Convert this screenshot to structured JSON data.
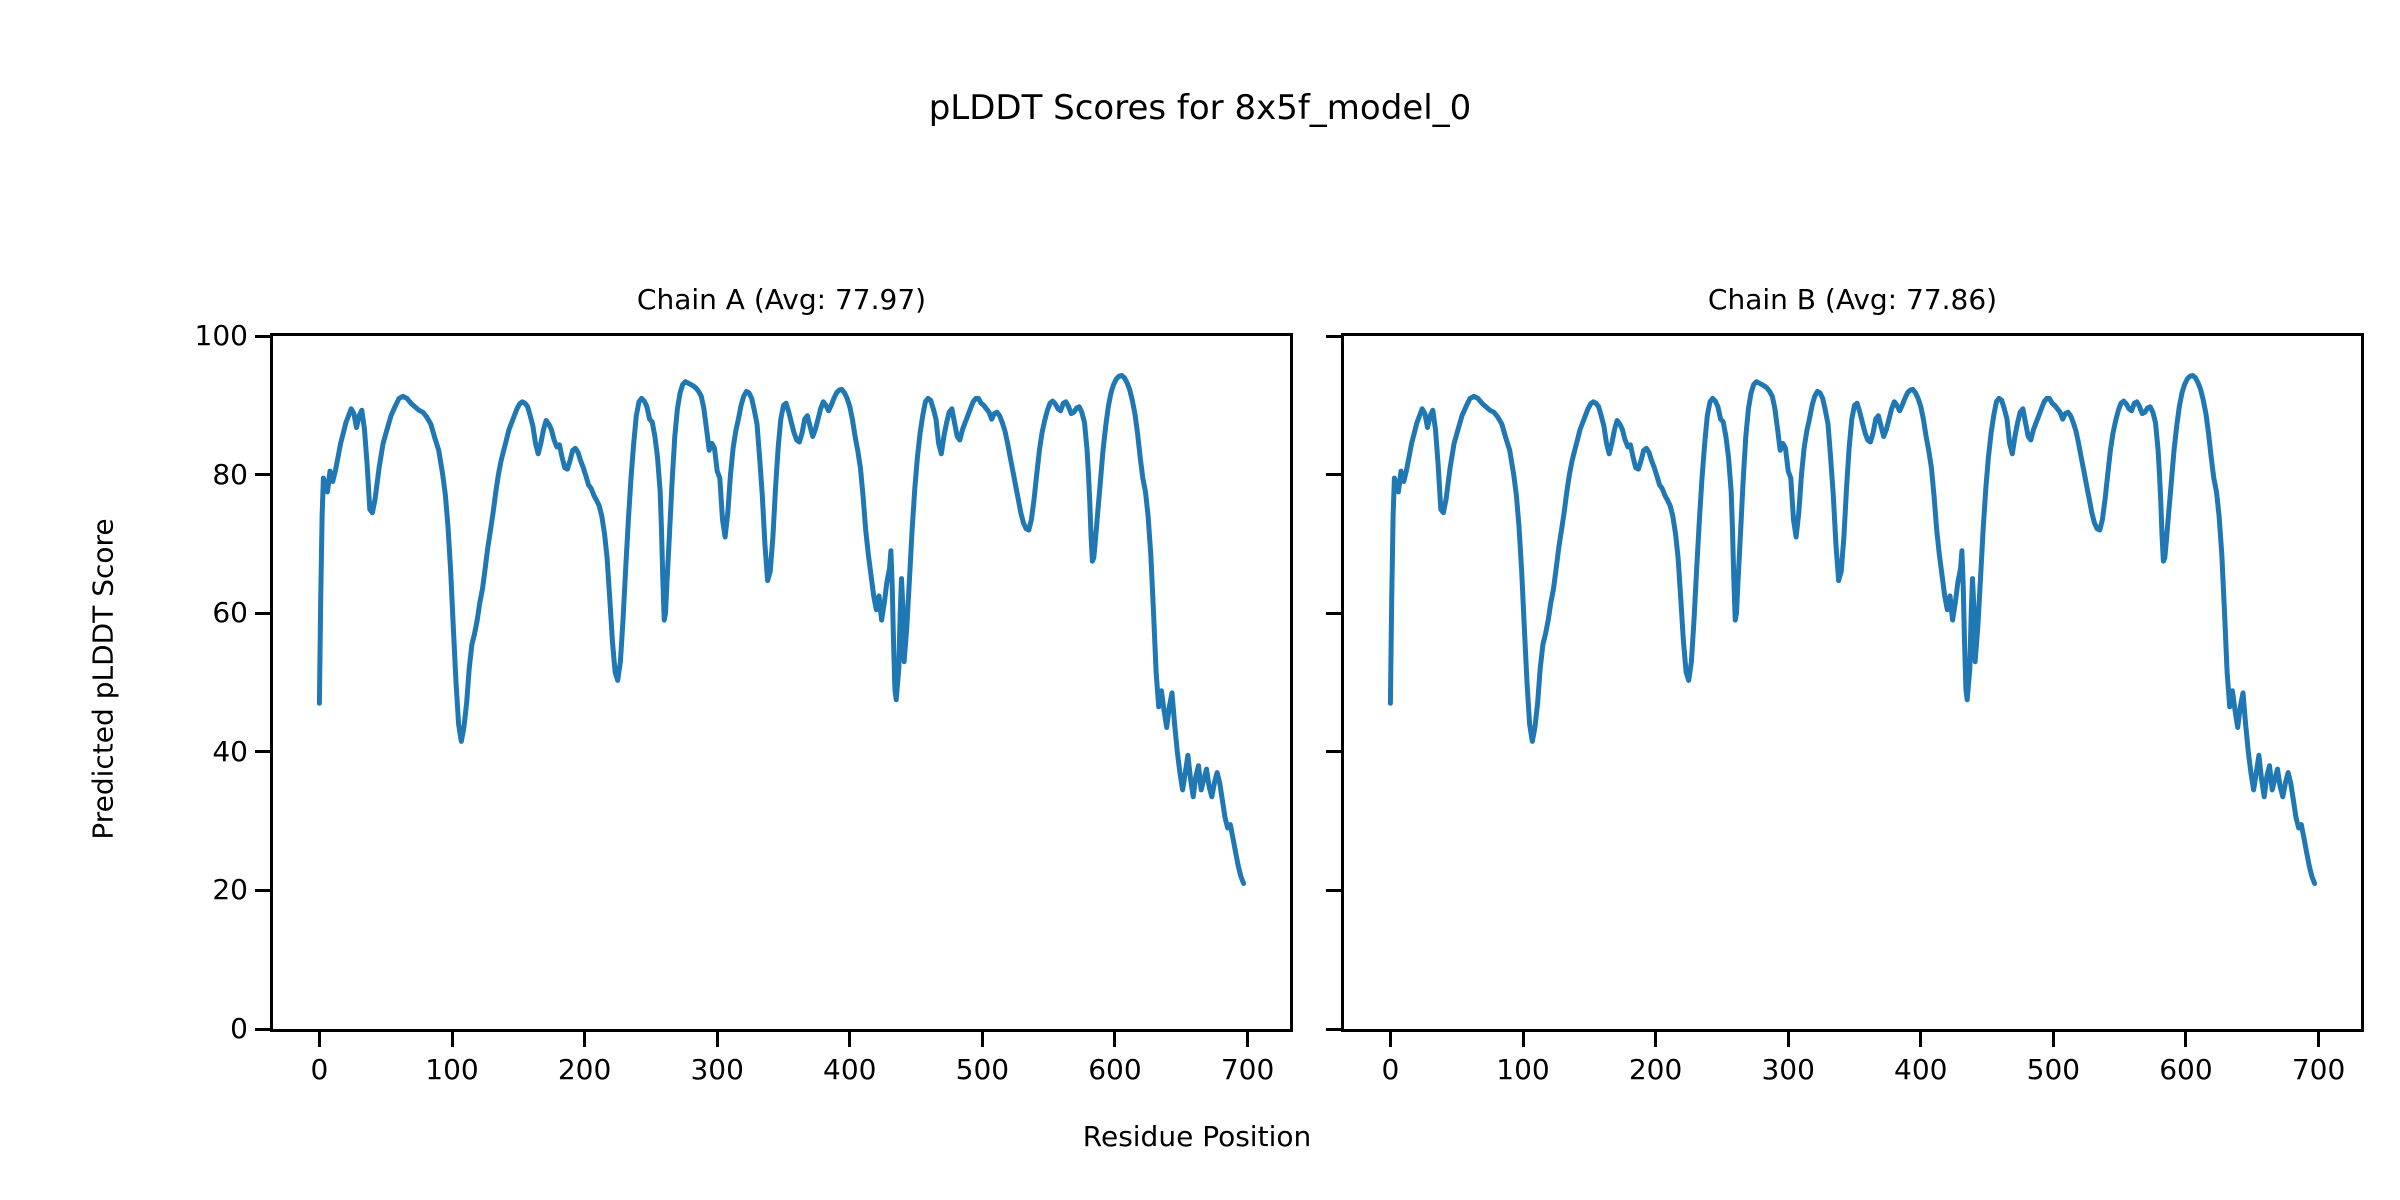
{
  "figure": {
    "title": "pLDDT Scores for 8x5f_model_0",
    "xlabel": "Residue Position",
    "ylabel": "Predicted pLDDT Score",
    "background": "#ffffff",
    "text_color": "#000000",
    "line_color": "#1f77b4",
    "panels": [
      {
        "id": "chain-a",
        "chain": "A",
        "title": "Chain A (Avg: 77.97)",
        "avg_plddt": 77.97
      },
      {
        "id": "chain-b",
        "chain": "B",
        "title": "Chain B (Avg: 77.86)",
        "avg_plddt": 77.86
      }
    ]
  },
  "chart_data": {
    "type": "line",
    "title": "pLDDT Scores for 8x5f_model_0",
    "xlabel": "Residue Position",
    "ylabel": "Predicted pLDDT Score",
    "xlim": [
      -35,
      732
    ],
    "ylim": [
      0,
      100
    ],
    "xticks": [
      0,
      100,
      200,
      300,
      400,
      500,
      600,
      700
    ],
    "yticks": [
      0,
      20,
      40,
      60,
      80,
      100
    ],
    "grid": false,
    "legend": "none",
    "line_color": "#1f77b4",
    "x": [
      0,
      1,
      2,
      3,
      5,
      6,
      8,
      10,
      12,
      14,
      16,
      18,
      20,
      22,
      24,
      26,
      28,
      30,
      32,
      34,
      36,
      38,
      40,
      42,
      45,
      48,
      51,
      54,
      57,
      60,
      63,
      66,
      69,
      72,
      75,
      78,
      81,
      84,
      87,
      90,
      93,
      95,
      97,
      99,
      101,
      103,
      105,
      107,
      109,
      111,
      113,
      115,
      117,
      119,
      121,
      123,
      125,
      127,
      129,
      131,
      133,
      135,
      137,
      139,
      141,
      143,
      145,
      147,
      149,
      151,
      153,
      155,
      157,
      159,
      161,
      163,
      165,
      167,
      169,
      171,
      173,
      175,
      177,
      179,
      181,
      183,
      185,
      187,
      189,
      191,
      193,
      195,
      197,
      199,
      201,
      203,
      205,
      207,
      209,
      211,
      213,
      215,
      217,
      219,
      221,
      223,
      225,
      227,
      229,
      231,
      233,
      235,
      237,
      239,
      241,
      243,
      245,
      247,
      249,
      251,
      253,
      255,
      257,
      258,
      259,
      260,
      261,
      262,
      264,
      266,
      268,
      270,
      272,
      274,
      276,
      278,
      280,
      282,
      284,
      286,
      288,
      290,
      292,
      294,
      296,
      298,
      300,
      302,
      304,
      306,
      308,
      310,
      312,
      314,
      316,
      318,
      320,
      322,
      324,
      326,
      328,
      330,
      332,
      334,
      336,
      338,
      340,
      342,
      344,
      346,
      348,
      350,
      352,
      354,
      356,
      358,
      360,
      362,
      364,
      366,
      368,
      370,
      372,
      374,
      376,
      378,
      380,
      382,
      384,
      386,
      388,
      390,
      392,
      394,
      396,
      398,
      400,
      402,
      404,
      406,
      408,
      410,
      412,
      414,
      416,
      418,
      420,
      422,
      424,
      426,
      428,
      430,
      431,
      432,
      433,
      434,
      435,
      437,
      438,
      439,
      440,
      441,
      443,
      445,
      447,
      449,
      451,
      453,
      455,
      457,
      459,
      461,
      463,
      465,
      467,
      469,
      471,
      473,
      475,
      477,
      479,
      481,
      483,
      485,
      487,
      489,
      491,
      493,
      495,
      497,
      499,
      501,
      503,
      505,
      507,
      509,
      511,
      513,
      515,
      517,
      519,
      521,
      523,
      525,
      527,
      529,
      531,
      533,
      535,
      537,
      539,
      541,
      543,
      545,
      547,
      549,
      551,
      553,
      555,
      557,
      559,
      561,
      563,
      565,
      567,
      569,
      571,
      573,
      575,
      577,
      579,
      580,
      581,
      582,
      583,
      584,
      585,
      587,
      589,
      591,
      593,
      595,
      597,
      599,
      601,
      603,
      605,
      607,
      609,
      611,
      613,
      615,
      617,
      619,
      621,
      623,
      625,
      627,
      629,
      631,
      633,
      635,
      637,
      639,
      641,
      643,
      645,
      647,
      649,
      651,
      653,
      655,
      657,
      659,
      661,
      663,
      665,
      667,
      669,
      671,
      673,
      675,
      677,
      679,
      681,
      683,
      685,
      687,
      689,
      691,
      693,
      695,
      697
    ],
    "series": [
      {
        "name": "Chain A (Avg: 77.97)",
        "avg": 77.97,
        "values": [
          47,
          62,
          74,
          79.5,
          78,
          77.5,
          80.5,
          79,
          80.5,
          82.5,
          84.5,
          86,
          87.5,
          88.5,
          89.5,
          88.8,
          86.8,
          88.5,
          89.3,
          86.5,
          81.5,
          75,
          74.5,
          76.5,
          81,
          84.5,
          86.5,
          88.5,
          89.8,
          91,
          91.3,
          91,
          90.3,
          89.8,
          89.3,
          89,
          88.3,
          87.3,
          85.3,
          83.5,
          80,
          77,
          72.5,
          66,
          58,
          50,
          44,
          41.5,
          43.5,
          47,
          52,
          55.5,
          57,
          59,
          61.5,
          63.5,
          66.5,
          69.5,
          72,
          74.5,
          77.5,
          80,
          82,
          83.5,
          85,
          86.5,
          87.5,
          88.5,
          89.5,
          90.2,
          90.5,
          90.3,
          89.8,
          88.5,
          87,
          84.5,
          83,
          84.5,
          86.5,
          87.8,
          87.3,
          86.5,
          85,
          84,
          84.3,
          82.5,
          81,
          80.8,
          82,
          83.5,
          83.8,
          83.2,
          82,
          81,
          79.8,
          78.5,
          78,
          77,
          76.3,
          75.5,
          74,
          71.5,
          68,
          62,
          56,
          51.5,
          50.3,
          53,
          59,
          66.5,
          73.5,
          79.5,
          84.5,
          88.5,
          90.5,
          91,
          90.6,
          89.8,
          88,
          87.6,
          85.5,
          82.5,
          77.5,
          72,
          65,
          59,
          60,
          64,
          71.5,
          79,
          85.5,
          89.5,
          91.8,
          93,
          93.4,
          93.2,
          93,
          92.8,
          92.5,
          92,
          91.3,
          89.5,
          86.5,
          83.5,
          84.5,
          83.8,
          80.5,
          79.5,
          73.5,
          71,
          74.5,
          80,
          83.8,
          86.3,
          88,
          90,
          91.3,
          92,
          91.8,
          91,
          89.3,
          87.3,
          82.5,
          77,
          70,
          64.7,
          66,
          71,
          78,
          84,
          88,
          90,
          90.3,
          89,
          87.5,
          86,
          85,
          84.7,
          86,
          88,
          88.5,
          87,
          85.5,
          86.5,
          88,
          89.5,
          90.5,
          90,
          89.2,
          90,
          91,
          91.8,
          92.2,
          92.3,
          91.8,
          91,
          89.8,
          88,
          85.5,
          83.5,
          81,
          77,
          72,
          68.5,
          65.5,
          62.5,
          60.5,
          62.5,
          59,
          61.5,
          64.5,
          66.5,
          69,
          64,
          56,
          49,
          47.5,
          52,
          60,
          65,
          61,
          53,
          58,
          65,
          72,
          78,
          82.5,
          86,
          88.5,
          90.5,
          91,
          90.7,
          89.5,
          88,
          84.5,
          83,
          85.5,
          87.5,
          89,
          89.5,
          87.5,
          85.5,
          85,
          86.5,
          87.5,
          88.5,
          89.5,
          90.5,
          91,
          91,
          90.3,
          90,
          89.5,
          89,
          88,
          88.8,
          89,
          88.5,
          87.5,
          86.3,
          84.5,
          82.5,
          80.5,
          78.5,
          76.5,
          74.5,
          73,
          72.2,
          72,
          73.5,
          76.5,
          80,
          83.5,
          86,
          87.8,
          89.3,
          90.3,
          90.6,
          90.2,
          89.5,
          89.2,
          90.3,
          90.5,
          89.8,
          88.8,
          89,
          89.6,
          89.8,
          89,
          87.5,
          83.5,
          80,
          76,
          71,
          67.5,
          68,
          70,
          74.5,
          79,
          83.5,
          87,
          89.8,
          91.8,
          93,
          93.8,
          94.2,
          94.3,
          94,
          93.3,
          92.3,
          90.8,
          88.8,
          86,
          82.5,
          79.5,
          77.5,
          74,
          68.5,
          60.5,
          51.5,
          46.5,
          48.8,
          46,
          43.5,
          46.5,
          48.5,
          44,
          40,
          37,
          34.5,
          37,
          39.5,
          36,
          33.5,
          36.5,
          38,
          34.5,
          36,
          37.5,
          35,
          33.5,
          35.5,
          37,
          35.5,
          33,
          30.5,
          29,
          29.5,
          27.5,
          25.5,
          23.5,
          22,
          21
        ]
      },
      {
        "name": "Chain B (Avg: 77.86)",
        "avg": 77.86,
        "values": [
          47,
          62,
          74,
          79.5,
          78,
          77.5,
          80.5,
          79,
          80.5,
          82.5,
          84.5,
          86,
          87.5,
          88.5,
          89.5,
          88.8,
          86.8,
          88.5,
          89.3,
          86.5,
          81.5,
          75,
          74.5,
          76.5,
          81,
          84.5,
          86.5,
          88.5,
          89.8,
          91,
          91.3,
          91,
          90.3,
          89.8,
          89.3,
          89,
          88.3,
          87.3,
          85.3,
          83.5,
          80,
          77,
          72.5,
          66,
          58,
          50,
          44,
          41.5,
          43.5,
          47,
          52,
          55.5,
          57,
          59,
          61.5,
          63.5,
          66.5,
          69.5,
          72,
          74.5,
          77.5,
          80,
          82,
          83.5,
          85,
          86.5,
          87.5,
          88.5,
          89.5,
          90.2,
          90.5,
          90.3,
          89.8,
          88.5,
          87,
          84.5,
          83,
          84.5,
          86.5,
          87.8,
          87.3,
          86.5,
          85,
          84,
          84.3,
          82.5,
          81,
          80.8,
          82,
          83.5,
          83.8,
          83.2,
          82,
          81,
          79.8,
          78.5,
          78,
          77,
          76.3,
          75.5,
          74,
          71.5,
          68,
          62,
          56,
          51.5,
          50.3,
          53,
          59,
          66.5,
          73.5,
          79.5,
          84.5,
          88.5,
          90.5,
          91,
          90.6,
          89.8,
          88,
          87.6,
          85.5,
          82.5,
          77.5,
          72,
          65,
          59,
          60,
          64,
          71.5,
          79,
          85.5,
          89.5,
          91.8,
          93,
          93.4,
          93.2,
          93,
          92.8,
          92.5,
          92,
          91.3,
          89.5,
          86.5,
          83.5,
          84.5,
          83.8,
          80.5,
          79.5,
          73.5,
          71,
          74.5,
          80,
          83.8,
          86.3,
          88,
          90,
          91.3,
          92,
          91.8,
          91,
          89.3,
          87.3,
          82.5,
          77,
          70,
          64.7,
          66,
          71,
          78,
          84,
          88,
          90,
          90.3,
          89,
          87.5,
          86,
          85,
          84.7,
          86,
          88,
          88.5,
          87,
          85.5,
          86.5,
          88,
          89.5,
          90.5,
          90,
          89.2,
          90,
          91,
          91.8,
          92.2,
          92.3,
          91.8,
          91,
          89.8,
          88,
          85.5,
          83.5,
          81,
          77,
          72,
          68.5,
          65.5,
          62.5,
          60.5,
          62.5,
          59,
          61.5,
          64.5,
          66.5,
          69,
          64,
          56,
          49,
          47.5,
          52,
          60,
          65,
          61,
          53,
          58,
          65,
          72,
          78,
          82.5,
          86,
          88.5,
          90.5,
          91,
          90.7,
          89.5,
          88,
          84.5,
          83,
          85.5,
          87.5,
          89,
          89.5,
          87.5,
          85.5,
          85,
          86.5,
          87.5,
          88.5,
          89.5,
          90.5,
          91,
          91,
          90.3,
          90,
          89.5,
          89,
          88,
          88.8,
          89,
          88.5,
          87.5,
          86.3,
          84.5,
          82.5,
          80.5,
          78.5,
          76.5,
          74.5,
          73,
          72.2,
          72,
          73.5,
          76.5,
          80,
          83.5,
          86,
          87.8,
          89.3,
          90.3,
          90.6,
          90.2,
          89.5,
          89.2,
          90.3,
          90.5,
          89.8,
          88.8,
          89,
          89.6,
          89.8,
          89,
          87.5,
          83.5,
          80,
          76,
          71,
          67.5,
          68,
          70,
          74.5,
          79,
          83.5,
          87,
          89.8,
          91.8,
          93,
          93.8,
          94.2,
          94.3,
          94,
          93.3,
          92.3,
          90.8,
          88.8,
          86,
          82.5,
          79.5,
          77.5,
          74,
          68.5,
          60.5,
          51.5,
          46.5,
          48.8,
          46,
          43.5,
          46.5,
          48.5,
          44,
          40,
          37,
          34.5,
          37,
          39.5,
          36,
          33.5,
          36.5,
          38,
          34.5,
          36,
          37.5,
          35,
          33.5,
          35.5,
          37,
          35.5,
          33,
          30.5,
          29,
          29.5,
          27.5,
          25.5,
          23.5,
          22,
          21
        ]
      }
    ]
  }
}
